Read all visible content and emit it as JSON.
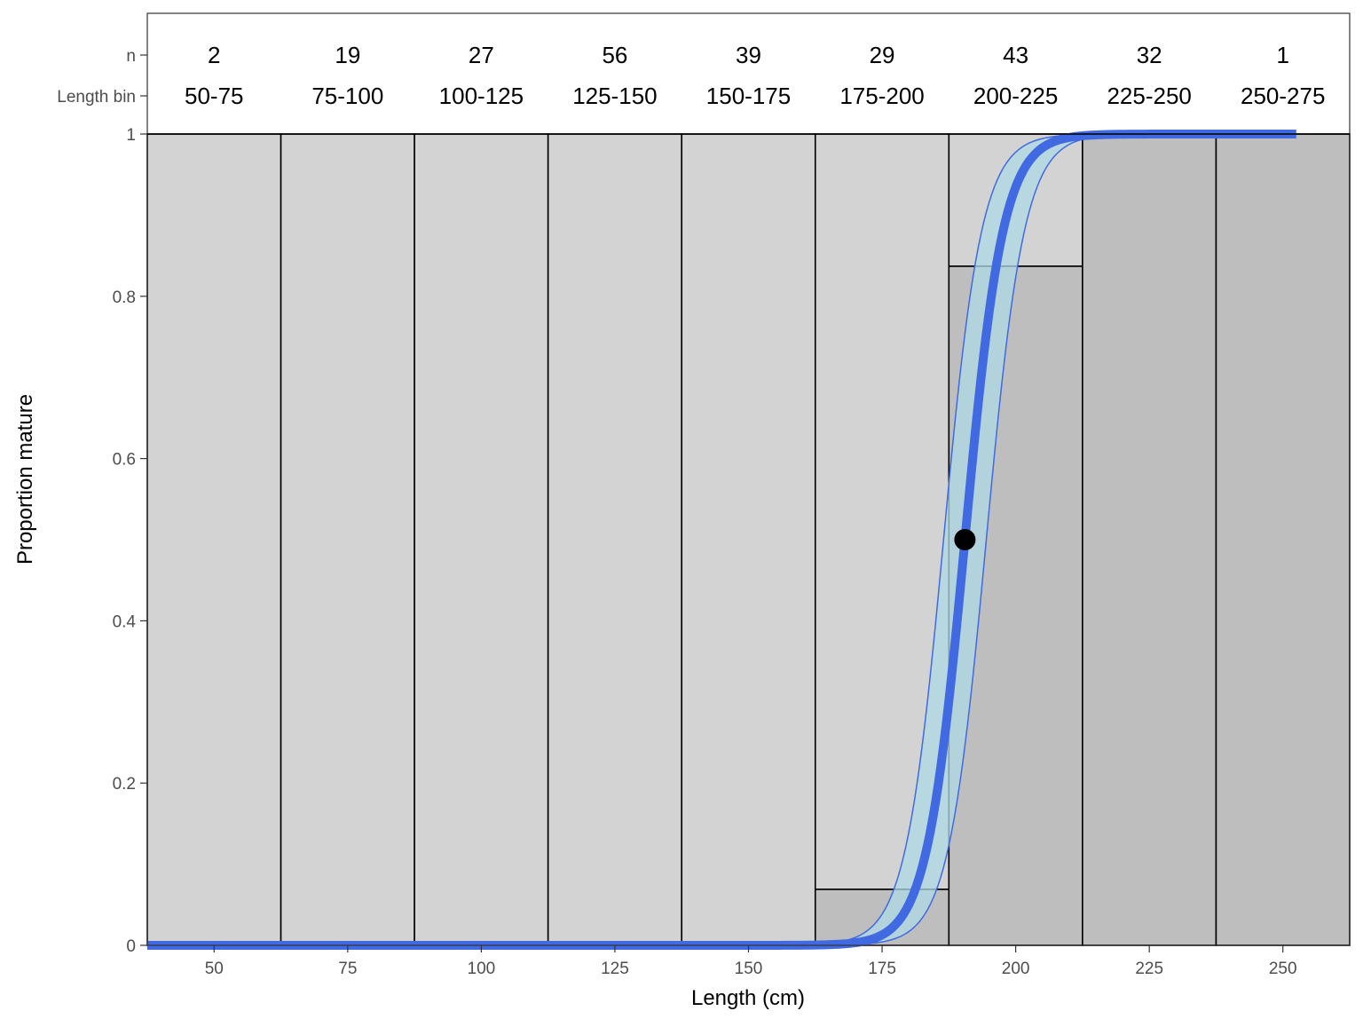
{
  "chart_data": {
    "type": "bar",
    "xlabel": "Length (cm)",
    "ylabel": "Proportion mature",
    "xlim": [
      37.5,
      262.5
    ],
    "ylim": [
      0,
      1
    ],
    "x_ticks": [
      50,
      75,
      100,
      125,
      150,
      175,
      200,
      225,
      250
    ],
    "y_ticks": [
      0,
      0.2,
      0.4,
      0.6,
      0.8,
      1
    ],
    "y_tick_labels": [
      "0",
      "0.2",
      "0.4",
      "0.6",
      "0.8",
      "1"
    ],
    "header_rows": {
      "n_label": "n",
      "bin_label": "Length bin"
    },
    "bins": [
      {
        "label": "50-75",
        "n": "2",
        "x_start": 37.5,
        "x_end": 62.5,
        "proportion_mature": 0
      },
      {
        "label": "75-100",
        "n": "19",
        "x_start": 62.5,
        "x_end": 87.5,
        "proportion_mature": 0
      },
      {
        "label": "100-125",
        "n": "27",
        "x_start": 87.5,
        "x_end": 112.5,
        "proportion_mature": 0
      },
      {
        "label": "125-150",
        "n": "56",
        "x_start": 112.5,
        "x_end": 137.5,
        "proportion_mature": 0
      },
      {
        "label": "150-175",
        "n": "39",
        "x_start": 137.5,
        "x_end": 162.5,
        "proportion_mature": 0
      },
      {
        "label": "175-200",
        "n": "29",
        "x_start": 162.5,
        "x_end": 187.5,
        "proportion_mature": 0.069
      },
      {
        "label": "200-225",
        "n": "43",
        "x_start": 187.5,
        "x_end": 212.5,
        "proportion_mature": 0.837
      },
      {
        "label": "225-250",
        "n": "32",
        "x_start": 212.5,
        "x_end": 237.5,
        "proportion_mature": 1
      },
      {
        "label": "250-275",
        "n": "1",
        "x_start": 237.5,
        "x_end": 262.5,
        "proportion_mature": 1
      }
    ],
    "logistic_fit": {
      "l50": 190.5,
      "slope": 0.28,
      "ci_l50_low": 186.5,
      "ci_l50_high": 194.5,
      "x_range": [
        37.5,
        252.5
      ]
    },
    "l50_point": {
      "x": 190.5,
      "y": 0.5
    },
    "colors": {
      "immature_fill": "#d3d3d3",
      "mature_fill": "#bebebe",
      "fit_line": "#4169e1",
      "ci_fill": "#add8e6",
      "point": "#000000"
    }
  }
}
